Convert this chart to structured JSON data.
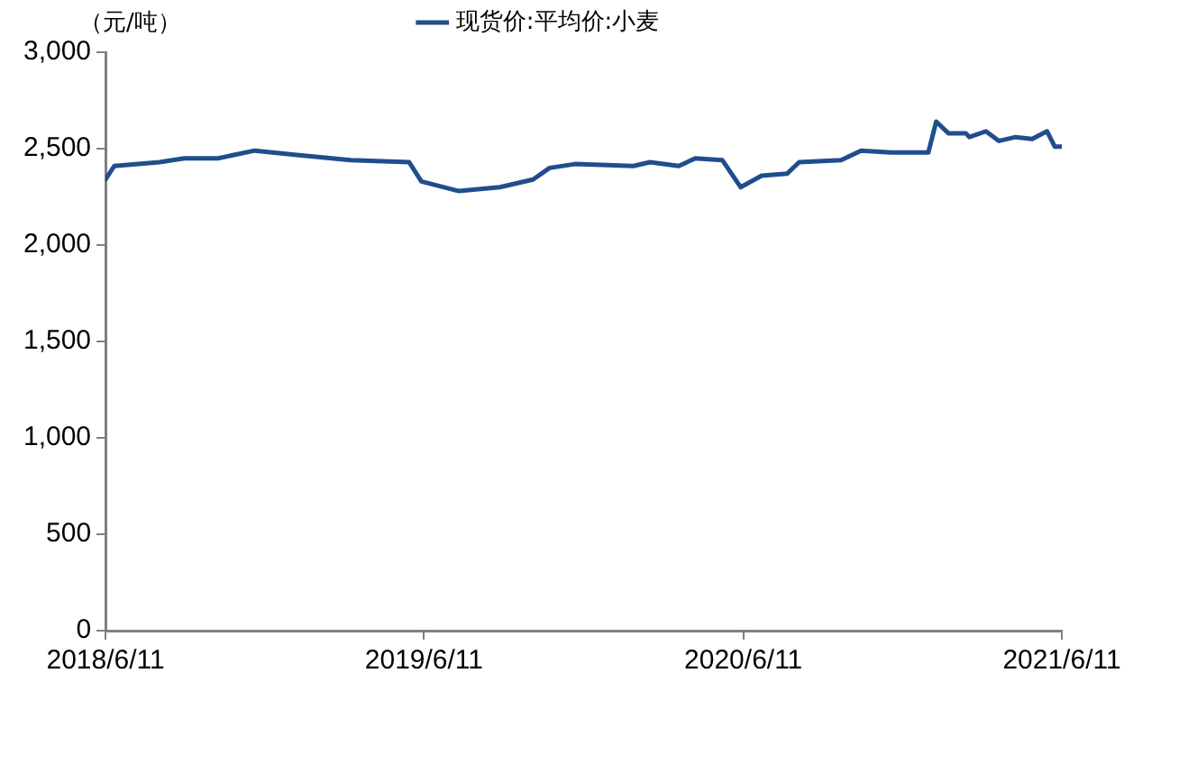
{
  "chart_data": {
    "type": "line",
    "ylabel": "（元/吨）",
    "legend": "top",
    "grid": false,
    "marker": "none",
    "line_style": "solid",
    "xlim": [
      "2018-06-11",
      "2021-06-11"
    ],
    "xticks": [
      {
        "value": "2018-06-11",
        "label": "2018/6/11"
      },
      {
        "value": "2019-06-11",
        "label": "2019/6/11"
      },
      {
        "value": "2020-06-11",
        "label": "2020/6/11"
      },
      {
        "value": "2021-06-11",
        "label": "2021/6/11"
      }
    ],
    "ylim": [
      0,
      3000
    ],
    "yticks": [
      0,
      {
        "value": 500,
        "label": "500"
      },
      {
        "value": 1000,
        "label": "1,000"
      },
      {
        "value": 1500,
        "label": "1,500"
      },
      {
        "value": 2000,
        "label": "2,000"
      },
      {
        "value": 2500,
        "label": "2,500"
      },
      {
        "value": 3000,
        "label": "3,000"
      }
    ],
    "x": [
      "2018-06-11",
      "2018-06-21",
      "2018-08-12",
      "2018-09-09",
      "2018-10-18",
      "2018-11-29",
      "2019-01-11",
      "2019-03-19",
      "2019-05-25",
      "2019-06-08",
      "2019-07-21",
      "2019-09-06",
      "2019-10-14",
      "2019-11-02",
      "2019-12-01",
      "2020-02-06",
      "2020-02-25",
      "2020-03-29",
      "2020-04-17",
      "2020-05-18",
      "2020-06-08",
      "2020-07-02",
      "2020-07-31",
      "2020-08-14",
      "2020-10-01",
      "2020-10-24",
      "2020-11-27",
      "2021-01-09",
      "2021-01-18",
      "2021-02-01",
      "2021-02-21",
      "2021-02-25",
      "2021-03-16",
      "2021-03-31",
      "2021-04-19",
      "2021-05-08",
      "2021-05-25",
      "2021-06-03",
      "2021-06-11"
    ],
    "series": [
      {
        "name": "现货价:平均价:小麦",
        "color": "#1f4e8c",
        "values": [
          2340,
          2410,
          2430,
          2450,
          2450,
          2490,
          2470,
          2440,
          2430,
          2330,
          2280,
          2300,
          2340,
          2400,
          2420,
          2410,
          2430,
          2410,
          2450,
          2440,
          2300,
          2360,
          2370,
          2430,
          2440,
          2490,
          2480,
          2480,
          2640,
          2580,
          2580,
          2560,
          2590,
          2540,
          2560,
          2550,
          2590,
          2510,
          2510
        ]
      }
    ]
  }
}
